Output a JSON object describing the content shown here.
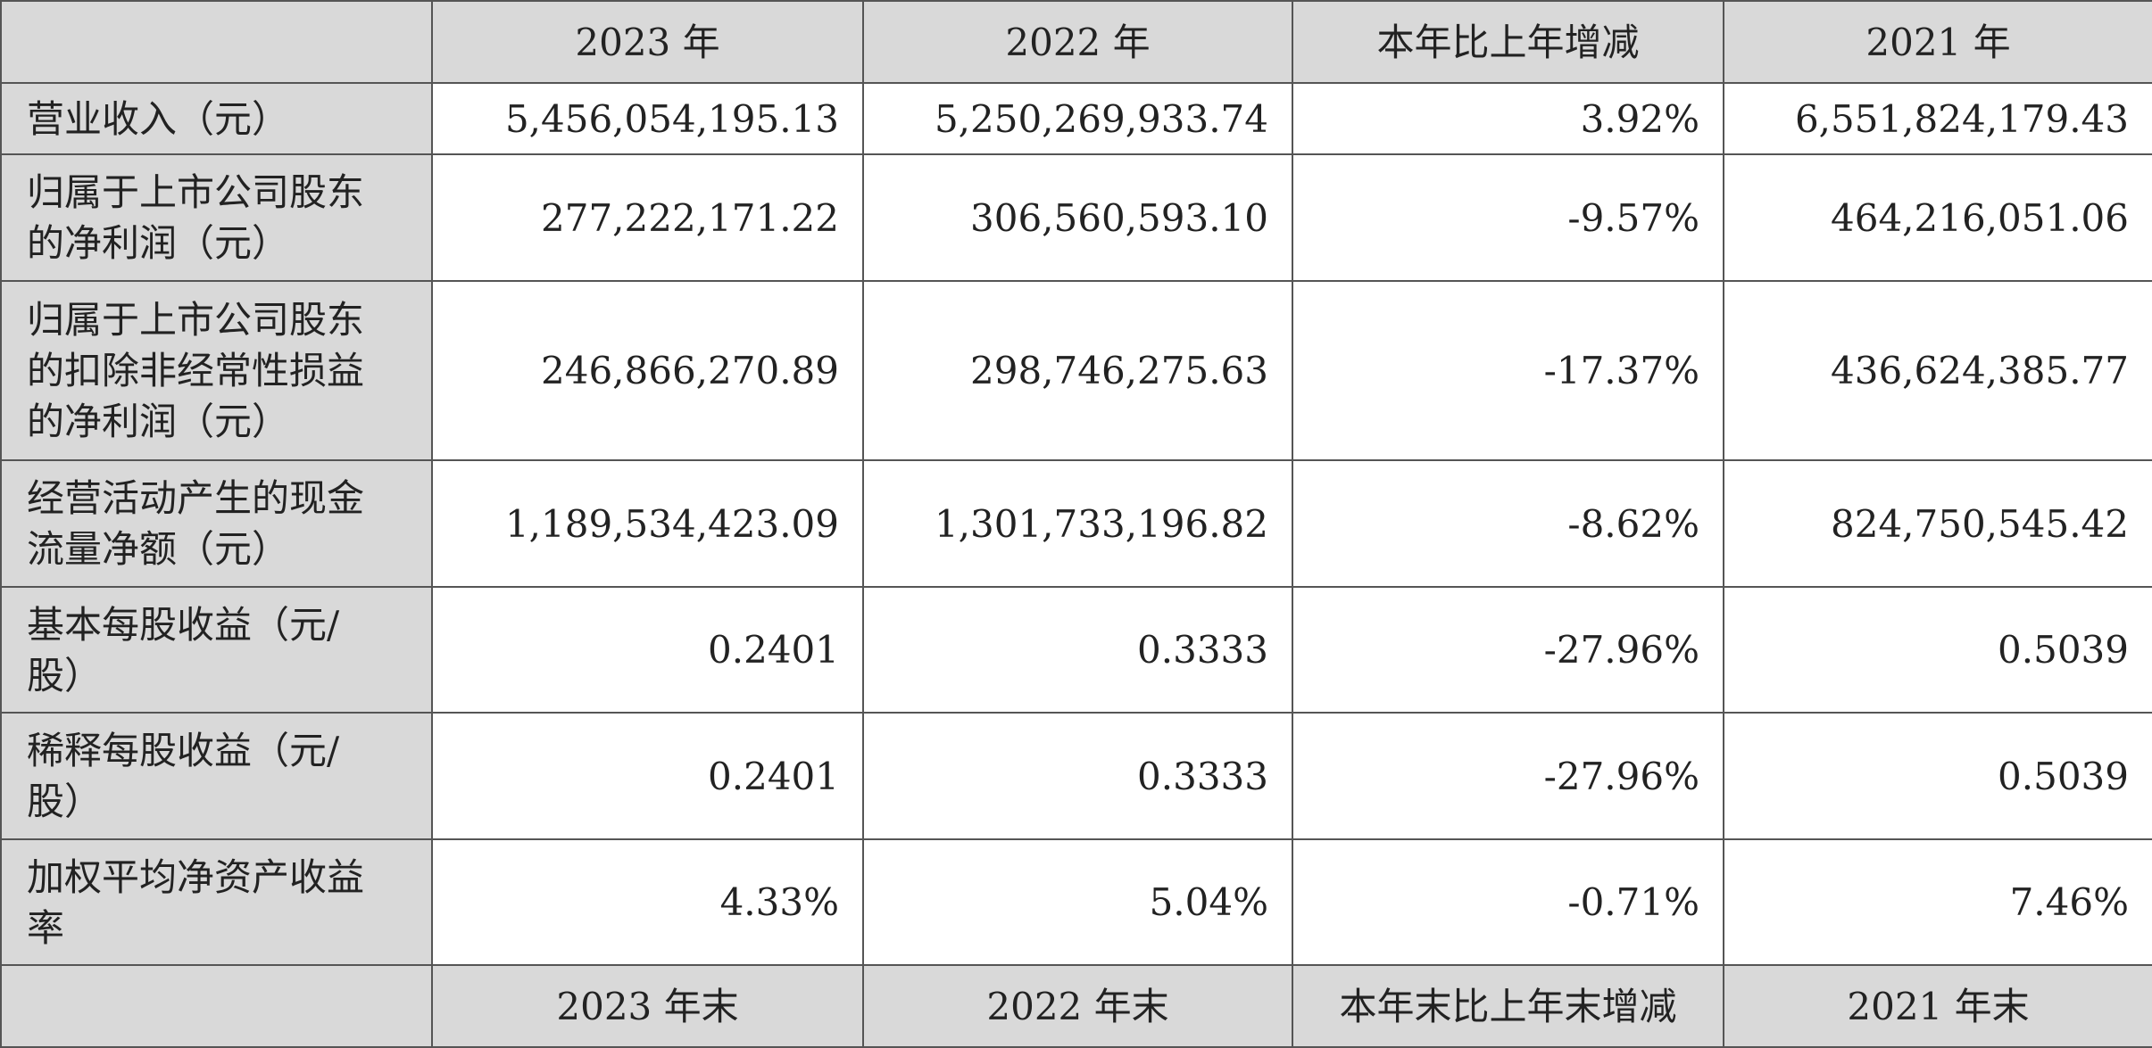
{
  "table": {
    "header": [
      "2023 年",
      "2022 年",
      "本年比上年增减",
      "2021 年"
    ],
    "rows": [
      [
        "营业收入（元）",
        "5,456,054,195.13",
        "5,250,269,933.74",
        "3.92%",
        "6,551,824,179.43"
      ],
      [
        "归属于上市公司股东的净利润（元）",
        "277,222,171.22",
        "306,560,593.10",
        "-9.57%",
        "464,216,051.06"
      ],
      [
        "归属于上市公司股东的扣除非经常性损益的净利润（元）",
        "246,866,270.89",
        "298,746,275.63",
        "-17.37%",
        "436,624,385.77"
      ],
      [
        "经营活动产生的现金流量净额（元）",
        "1,189,534,423.09",
        "1,301,733,196.82",
        "-8.62%",
        "824,750,545.42"
      ],
      [
        "基本每股收益（元/股）",
        "0.2401",
        "0.3333",
        "-27.96%",
        "0.5039"
      ],
      [
        "稀释每股收益（元/股）",
        "0.2401",
        "0.3333",
        "-27.96%",
        "0.5039"
      ],
      [
        "加权平均净资产收益率",
        "4.33%",
        "5.04%",
        "-0.71%",
        "7.46%"
      ]
    ],
    "footer": [
      "2023 年末",
      "2022 年末",
      "本年末比上年末增减",
      "2021 年末"
    ]
  }
}
